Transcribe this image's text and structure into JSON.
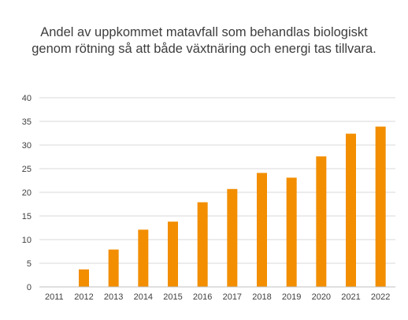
{
  "chart_data": {
    "type": "bar",
    "title": "Andel av uppkommet matavfall som behandlas biologiskt genom rötning så att både växtnäring och energi tas tillvara.",
    "xlabel": "",
    "ylabel": "",
    "categories": [
      "2011",
      "2012",
      "2013",
      "2014",
      "2015",
      "2016",
      "2017",
      "2018",
      "2019",
      "2020",
      "2021",
      "2022"
    ],
    "values": [
      0,
      3.7,
      7.9,
      12.1,
      13.8,
      17.9,
      20.7,
      24.1,
      23.1,
      27.6,
      32.4,
      33.9
    ],
    "ylim": [
      0,
      40
    ],
    "yticks": [
      "0",
      "5",
      "10",
      "15",
      "20",
      "25",
      "30",
      "35",
      "40"
    ],
    "grid": true,
    "legend": "none",
    "bar_color": "#f28e00",
    "grid_color": "#d9d9d9",
    "axis_color": "#bfbfbf"
  }
}
